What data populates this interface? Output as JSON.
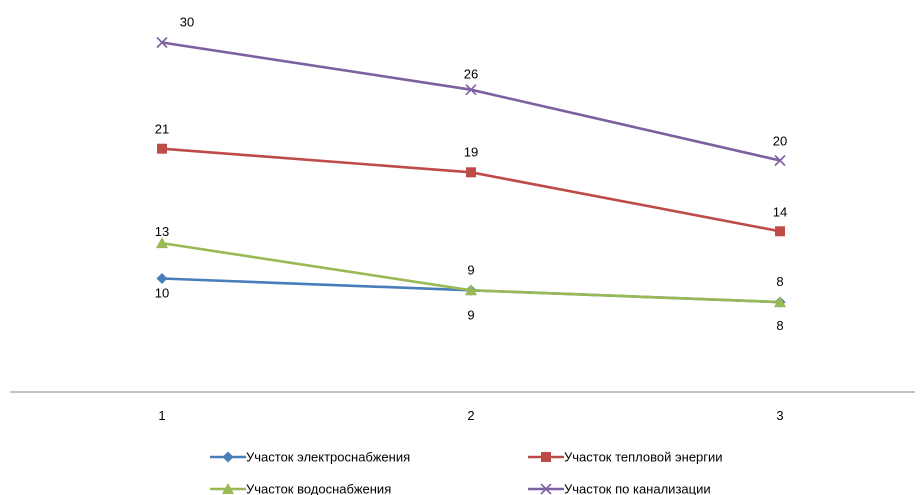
{
  "chart_data": {
    "type": "line",
    "categories": [
      "1",
      "2",
      "3"
    ],
    "ylim": [
      0,
      32
    ],
    "grid": false,
    "legend_position": "bottom",
    "series": [
      {
        "name": "Участок электроснабжения",
        "color": "#4a7ebb",
        "marker": "diamond",
        "values": [
          10,
          9,
          8
        ],
        "labels": [
          "10",
          "9",
          "8"
        ]
      },
      {
        "name": "Участок тепловой энергии",
        "color": "#be4b48",
        "marker": "square",
        "values": [
          21,
          19,
          14
        ],
        "labels": [
          "21",
          "19",
          "14"
        ]
      },
      {
        "name": "Участок водоснабжения",
        "color": "#98b954",
        "marker": "triangle",
        "values": [
          13,
          9,
          8
        ],
        "labels": [
          "13",
          "9",
          "8"
        ]
      },
      {
        "name": "Участок по канализации",
        "color": "#7d60a0",
        "marker": "x",
        "values": [
          30,
          26,
          20
        ],
        "labels": [
          "30",
          "26",
          "20"
        ]
      }
    ]
  }
}
